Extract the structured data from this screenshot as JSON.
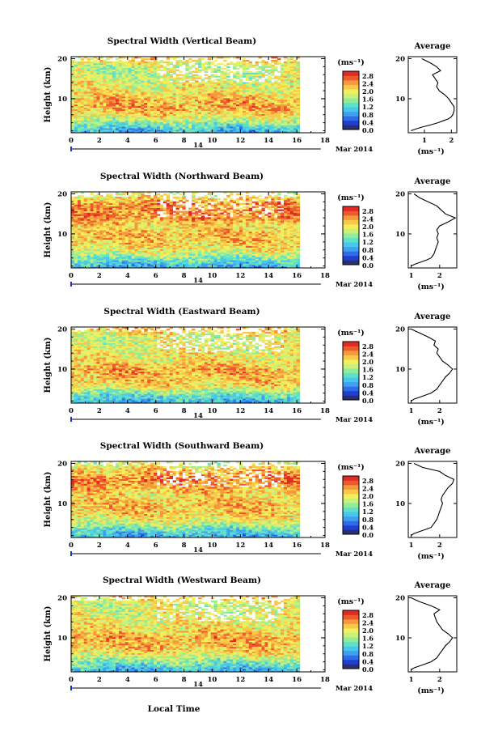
{
  "figure": {
    "xlabel": "Local Time",
    "date_label": "Mar 2014",
    "day_label": "14",
    "unit_label": "(ms⁻¹)",
    "ylabel": "Height (km)",
    "avg_title": "Average",
    "colorbar_ticks": [
      "0.0",
      "0.4",
      "0.8",
      "1.2",
      "1.6",
      "2.0",
      "2.4",
      "2.8"
    ],
    "colormap": [
      "#2b2f6e",
      "#1f3fd0",
      "#2f6de8",
      "#3fa0f0",
      "#46c8ec",
      "#5fe0c8",
      "#90ec9a",
      "#c8f07a",
      "#f4ee5a",
      "#f8c848",
      "#f49a3a",
      "#ee5a2e",
      "#e02a22"
    ]
  },
  "chart_data": [
    {
      "type": "heatmap",
      "title": "Spectral Width (Vertical Beam)",
      "x_ticks": [
        0,
        2,
        4,
        6,
        8,
        10,
        12,
        14,
        16,
        18
      ],
      "xlim": [
        0,
        18
      ],
      "y_ticks": [
        10,
        20
      ],
      "ylim": [
        1.5,
        20.5
      ],
      "data_xrange": [
        0,
        16.2
      ],
      "value_range": [
        0,
        3.0
      ],
      "height_profile": [
        [
          2,
          0.9
        ],
        [
          4,
          1.5
        ],
        [
          6,
          2.1
        ],
        [
          8,
          2.4
        ],
        [
          10,
          2.3
        ],
        [
          12,
          2.0
        ],
        [
          14,
          1.9
        ],
        [
          16,
          1.8
        ],
        [
          18,
          1.7
        ],
        [
          20,
          2.2
        ]
      ],
      "average_profile": {
        "xlabel": "(ms⁻¹)",
        "x_ticks": [
          1,
          2
        ],
        "xlim": [
          0.4,
          2.2
        ],
        "points": [
          [
            2.0,
            0.5
          ],
          [
            2.5,
            0.7
          ],
          [
            3.0,
            0.95
          ],
          [
            3.5,
            1.25
          ],
          [
            4.0,
            1.5
          ],
          [
            4.5,
            1.7
          ],
          [
            5.0,
            1.9
          ],
          [
            5.5,
            2.0
          ],
          [
            6.0,
            2.05
          ],
          [
            7.0,
            2.1
          ],
          [
            8.0,
            2.1
          ],
          [
            9.0,
            2.0
          ],
          [
            10.0,
            1.9
          ],
          [
            11.0,
            1.75
          ],
          [
            12.0,
            1.55
          ],
          [
            13.0,
            1.45
          ],
          [
            14.0,
            1.5
          ],
          [
            15.0,
            1.4
          ],
          [
            16.0,
            1.3
          ],
          [
            17.0,
            1.6
          ],
          [
            18.0,
            1.45
          ],
          [
            19.0,
            1.2
          ],
          [
            20.0,
            0.9
          ]
        ]
      }
    },
    {
      "type": "heatmap",
      "title": "Spectral Width (Northward Beam)",
      "x_ticks": [
        0,
        2,
        4,
        6,
        8,
        10,
        12,
        14,
        16,
        18
      ],
      "xlim": [
        0,
        18
      ],
      "y_ticks": [
        10,
        20
      ],
      "ylim": [
        1.5,
        20.5
      ],
      "data_xrange": [
        0,
        16.2
      ],
      "value_range": [
        0,
        3.0
      ],
      "height_profile": [
        [
          2,
          0.9
        ],
        [
          4,
          1.4
        ],
        [
          6,
          2.0
        ],
        [
          8,
          2.2
        ],
        [
          10,
          2.3
        ],
        [
          12,
          2.1
        ],
        [
          14,
          2.5
        ],
        [
          16,
          2.6
        ],
        [
          18,
          2.4
        ],
        [
          20,
          1.9
        ]
      ],
      "average_profile": {
        "xlabel": "(ms⁻¹)",
        "x_ticks": [
          1,
          2
        ],
        "xlim": [
          0.9,
          2.6
        ],
        "points": [
          [
            2.0,
            1.0
          ],
          [
            2.5,
            1.15
          ],
          [
            3.0,
            1.35
          ],
          [
            3.5,
            1.55
          ],
          [
            4.0,
            1.7
          ],
          [
            5.0,
            1.8
          ],
          [
            6.0,
            1.85
          ],
          [
            7.0,
            1.9
          ],
          [
            8.0,
            1.95
          ],
          [
            9.0,
            1.9
          ],
          [
            10.0,
            1.95
          ],
          [
            11.0,
            1.9
          ],
          [
            12.0,
            2.0
          ],
          [
            13.0,
            2.3
          ],
          [
            14.0,
            2.55
          ],
          [
            15.0,
            2.2
          ],
          [
            16.0,
            2.05
          ],
          [
            17.0,
            1.9
          ],
          [
            18.0,
            1.6
          ],
          [
            19.0,
            1.3
          ],
          [
            20.0,
            1.1
          ]
        ]
      }
    },
    {
      "type": "heatmap",
      "title": "Spectral Width (Eastward Beam)",
      "x_ticks": [
        0,
        2,
        4,
        6,
        8,
        10,
        12,
        14,
        16,
        18
      ],
      "xlim": [
        0,
        18
      ],
      "y_ticks": [
        10,
        20
      ],
      "ylim": [
        1.5,
        20.5
      ],
      "data_xrange": [
        0,
        16.2
      ],
      "value_range": [
        0,
        3.0
      ],
      "height_profile": [
        [
          2,
          0.9
        ],
        [
          4,
          1.4
        ],
        [
          6,
          2.1
        ],
        [
          8,
          2.3
        ],
        [
          10,
          2.4
        ],
        [
          12,
          2.1
        ],
        [
          14,
          2.0
        ],
        [
          16,
          1.9
        ],
        [
          18,
          1.8
        ],
        [
          20,
          2.3
        ]
      ],
      "average_profile": {
        "xlabel": "(ms⁻¹)",
        "x_ticks": [
          1,
          2
        ],
        "xlim": [
          0.9,
          2.6
        ],
        "points": [
          [
            2.0,
            1.0
          ],
          [
            2.5,
            1.1
          ],
          [
            3.0,
            1.3
          ],
          [
            3.5,
            1.5
          ],
          [
            4.0,
            1.7
          ],
          [
            5.0,
            1.9
          ],
          [
            6.0,
            2.0
          ],
          [
            7.0,
            2.1
          ],
          [
            8.0,
            2.2
          ],
          [
            9.0,
            2.35
          ],
          [
            10.0,
            2.45
          ],
          [
            11.0,
            2.3
          ],
          [
            12.0,
            2.1
          ],
          [
            13.0,
            2.0
          ],
          [
            14.0,
            1.9
          ],
          [
            15.0,
            1.95
          ],
          [
            16.0,
            1.8
          ],
          [
            17.0,
            1.85
          ],
          [
            18.0,
            1.6
          ],
          [
            19.0,
            1.3
          ],
          [
            20.0,
            1.0
          ]
        ]
      }
    },
    {
      "type": "heatmap",
      "title": "Spectral Width (Southward Beam)",
      "x_ticks": [
        0,
        2,
        4,
        6,
        8,
        10,
        12,
        14,
        16,
        18
      ],
      "xlim": [
        0,
        18
      ],
      "y_ticks": [
        10,
        20
      ],
      "ylim": [
        1.5,
        20.5
      ],
      "data_xrange": [
        0,
        16.2
      ],
      "value_range": [
        0,
        3.0
      ],
      "height_profile": [
        [
          2,
          0.9
        ],
        [
          4,
          1.4
        ],
        [
          6,
          2.0
        ],
        [
          8,
          2.2
        ],
        [
          10,
          2.3
        ],
        [
          12,
          2.1
        ],
        [
          14,
          2.4
        ],
        [
          16,
          2.6
        ],
        [
          18,
          2.3
        ],
        [
          20,
          1.8
        ]
      ],
      "average_profile": {
        "xlabel": "(ms⁻¹)",
        "x_ticks": [
          1,
          2
        ],
        "xlim": [
          0.9,
          2.6
        ],
        "points": [
          [
            2.0,
            1.0
          ],
          [
            2.5,
            1.1
          ],
          [
            3.0,
            1.3
          ],
          [
            3.5,
            1.5
          ],
          [
            4.0,
            1.7
          ],
          [
            5.0,
            1.8
          ],
          [
            6.0,
            1.9
          ],
          [
            7.0,
            1.95
          ],
          [
            8.0,
            2.0
          ],
          [
            9.0,
            2.05
          ],
          [
            10.0,
            2.1
          ],
          [
            11.0,
            2.05
          ],
          [
            12.0,
            2.1
          ],
          [
            13.0,
            2.2
          ],
          [
            14.0,
            2.3
          ],
          [
            15.0,
            2.45
          ],
          [
            16.0,
            2.5
          ],
          [
            17.0,
            2.2
          ],
          [
            18.0,
            2.0
          ],
          [
            19.0,
            1.4
          ],
          [
            20.0,
            1.1
          ]
        ]
      }
    },
    {
      "type": "heatmap",
      "title": "Spectral Width (Westward Beam)",
      "x_ticks": [
        0,
        2,
        4,
        6,
        8,
        10,
        12,
        14,
        16,
        18
      ],
      "xlim": [
        0,
        18
      ],
      "y_ticks": [
        10,
        20
      ],
      "ylim": [
        1.5,
        20.5
      ],
      "data_xrange": [
        0,
        16.2
      ],
      "value_range": [
        0,
        3.0
      ],
      "height_profile": [
        [
          2,
          0.9
        ],
        [
          4,
          1.4
        ],
        [
          6,
          2.0
        ],
        [
          8,
          2.3
        ],
        [
          10,
          2.4
        ],
        [
          12,
          2.1
        ],
        [
          14,
          2.0
        ],
        [
          16,
          1.9
        ],
        [
          18,
          1.8
        ],
        [
          20,
          2.2
        ]
      ],
      "average_profile": {
        "xlabel": "(ms⁻¹)",
        "x_ticks": [
          1,
          2
        ],
        "xlim": [
          0.9,
          2.6
        ],
        "points": [
          [
            2.0,
            1.0
          ],
          [
            2.5,
            1.1
          ],
          [
            3.0,
            1.3
          ],
          [
            3.5,
            1.5
          ],
          [
            4.0,
            1.7
          ],
          [
            5.0,
            1.9
          ],
          [
            6.0,
            2.0
          ],
          [
            7.0,
            2.1
          ],
          [
            8.0,
            2.2
          ],
          [
            9.0,
            2.35
          ],
          [
            10.0,
            2.45
          ],
          [
            11.0,
            2.3
          ],
          [
            12.0,
            2.1
          ],
          [
            13.0,
            2.0
          ],
          [
            14.0,
            1.9
          ],
          [
            15.0,
            1.85
          ],
          [
            16.0,
            1.8
          ],
          [
            17.0,
            2.0
          ],
          [
            18.0,
            1.7
          ],
          [
            19.0,
            1.3
          ],
          [
            20.0,
            1.0
          ]
        ]
      }
    }
  ]
}
